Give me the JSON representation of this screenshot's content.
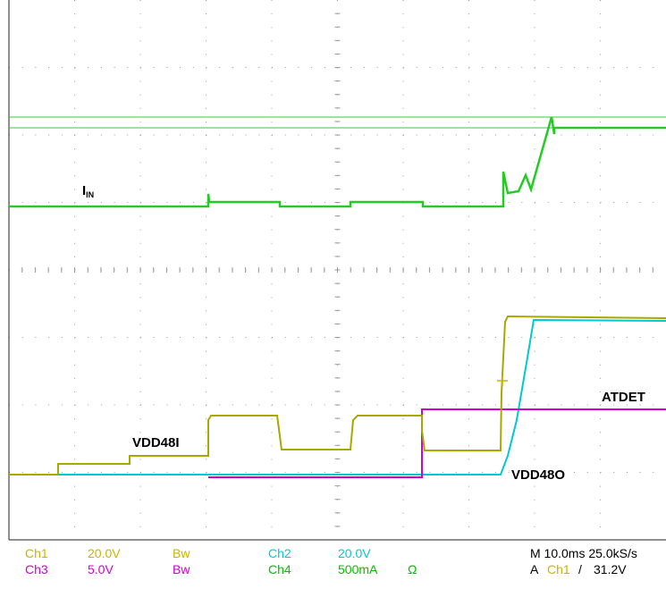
{
  "trace_labels": {
    "iin": {
      "main": "I",
      "sub": "IN"
    },
    "vdd48i": "VDD48I",
    "atdet": "ATDET",
    "vdd48o": "VDD48O"
  },
  "status": {
    "ch1": {
      "name": "Ch1",
      "scale": "20.0V",
      "bw": "Bw"
    },
    "ch2": {
      "name": "Ch2",
      "scale": "20.0V"
    },
    "ch3": {
      "name": "Ch3",
      "scale": "5.0V",
      "bw": "Bw"
    },
    "ch4": {
      "name": "Ch4",
      "scale": "500mA",
      "unit": "Ω"
    },
    "timebase": "M 10.0ms 25.0kS/s",
    "trigger": {
      "mode": "A",
      "source": "Ch1",
      "slope": "/",
      "level": "31.2V"
    }
  }
}
